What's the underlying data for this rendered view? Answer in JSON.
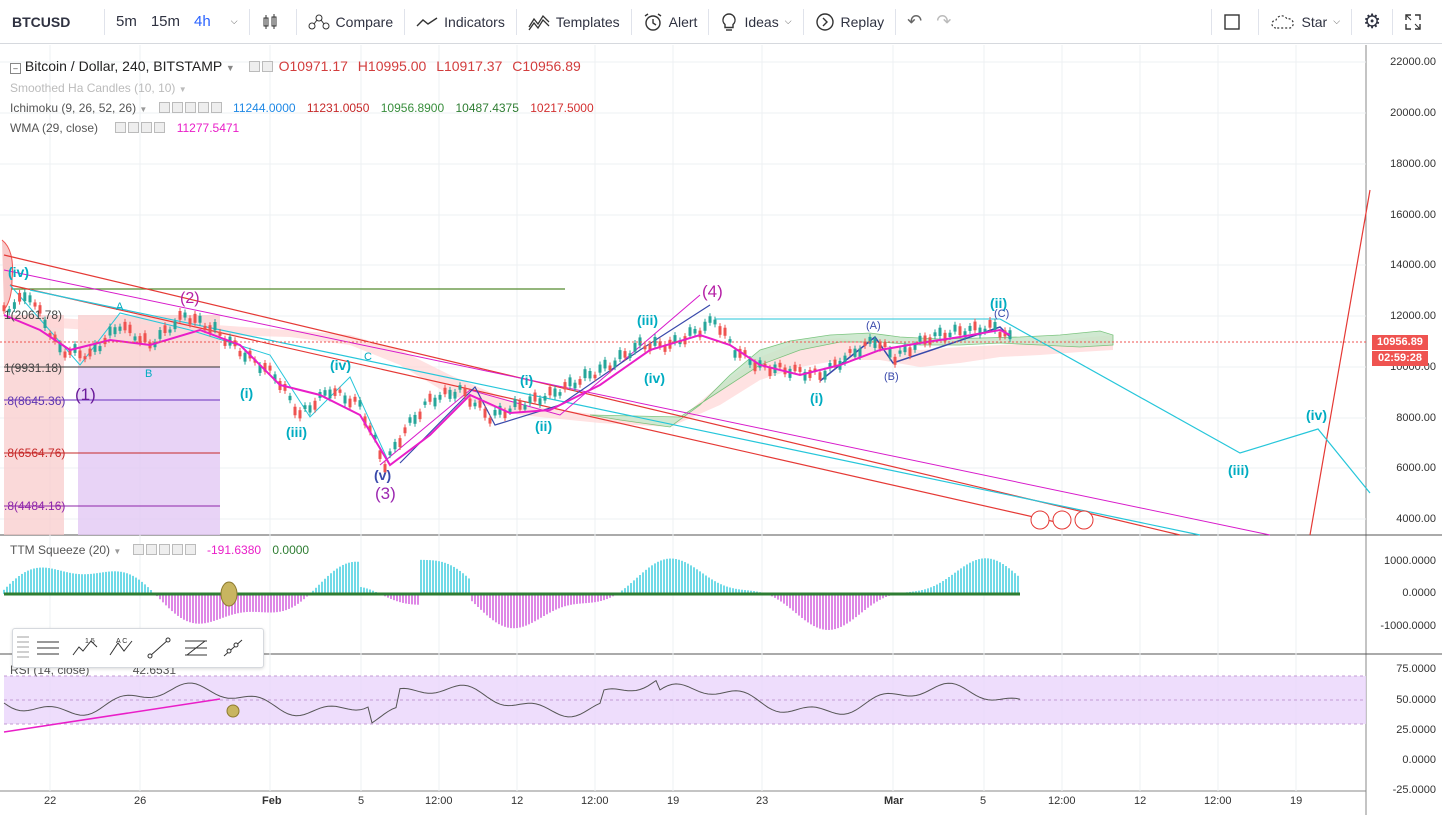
{
  "toolbar": {
    "symbol": "BTCUSD",
    "intervals": [
      "5m",
      "15m",
      "4h"
    ],
    "compare": "Compare",
    "indicators": "Indicators",
    "templates": "Templates",
    "alert": "Alert",
    "ideas": "Ideas",
    "replay": "Replay",
    "star": "Star"
  },
  "legend": {
    "title": "Bitcoin / Dollar, 240, BITSTAMP",
    "o": "O10971.17",
    "h": "H10995.00",
    "l": "L10917.37",
    "c": "C10956.89",
    "smoothed": "Smoothed Ha Candles (10, 10)",
    "ichimoku": "Ichimoku (9, 26, 52, 26)",
    "ichi_vals": [
      "11244.0000",
      "11231.0050",
      "10956.8900",
      "10487.4375",
      "10217.5000"
    ],
    "wma": "WMA (29, close)",
    "wma_val": "11277.5471",
    "ttm": "TTM Squeeze (20)",
    "ttm_v1": "-191.6380",
    "ttm_v2": "0.0000",
    "rsi": "RSI (14, close)",
    "rsi_val": "42.6531"
  },
  "price_axis": [
    "22000.00",
    "20000.00",
    "18000.00",
    "16000.00",
    "14000.00",
    "12000.00",
    "10000.00",
    "8000.00",
    "6000.00",
    "4000.00"
  ],
  "last_price": "10956.89",
  "countdown": "02:59:28",
  "ttm_axis": [
    "1000.0000",
    "0.0000",
    "-1000.0000"
  ],
  "rsi_axis": [
    "75.0000",
    "50.0000",
    "25.0000",
    "0.0000",
    "-25.0000"
  ],
  "time_axis": [
    "22",
    "26",
    "Feb",
    "5",
    "12:00",
    "12",
    "12:00",
    "19",
    "23",
    "Mar",
    "5",
    "12:00",
    "12",
    "12:00",
    "19"
  ],
  "fib_labels": [
    "1(2061.78)",
    "1(9931.18)",
    ".8(8645.36)",
    ".8(6564.76)",
    ".8(4484.16)"
  ],
  "wave_labels": {
    "purple": [
      "(2)",
      "(1)",
      "(3)",
      "(4)"
    ],
    "teal": [
      "(iv)",
      "(iii)",
      "(iv)",
      "(v)",
      "(i)",
      "(ii)",
      "(iii)",
      "(iv)",
      "(i)",
      "(ii)",
      "(iii)",
      "(iv)",
      "(i)"
    ],
    "letters": [
      "A",
      "B",
      "C",
      "(A)",
      "(B)",
      "(C)"
    ]
  },
  "colors": {
    "up": "#26a69a",
    "down": "#ef5350",
    "accent": "#2962ff",
    "wma": "#e91ec8",
    "cloud_g": "#a5d6a7",
    "cloud_r": "#f4b6b6",
    "last_price_bg": "#ef5350"
  }
}
